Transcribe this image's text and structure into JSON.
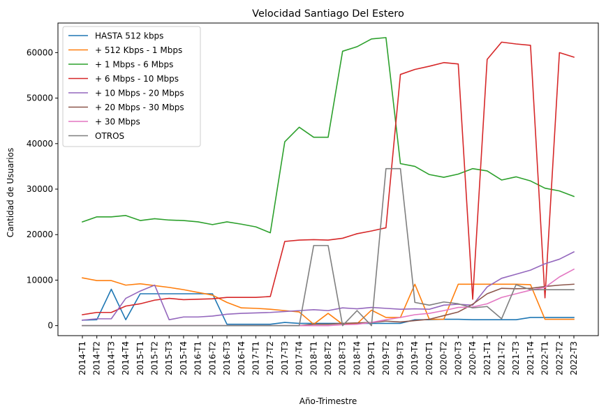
{
  "chart_data": {
    "type": "line",
    "title": "Velocidad Santiago Del Estero",
    "xlabel": "Año-Trimestre",
    "ylabel": "Cantidad de Usuarios",
    "ylim": [
      -2200,
      66500
    ],
    "yticks": [
      0,
      10000,
      20000,
      30000,
      40000,
      50000,
      60000
    ],
    "grid": false,
    "legend": "top-left",
    "categories": [
      "2014-T1",
      "2014-T2",
      "2014-T3",
      "2014-T4",
      "2015-T1",
      "2015-T2",
      "2015-T3",
      "2015-T4",
      "2016-T1",
      "2016-T2",
      "2016-T3",
      "2016-T4",
      "2017-T1",
      "2017-T2",
      "2017-T3",
      "2017-T4",
      "2018-T1",
      "2018-T2",
      "2018-T3",
      "2018-T4",
      "2019-T1",
      "2019-T2",
      "2019-T3",
      "2019-T4",
      "2020-T1",
      "2020-T2",
      "2020-T3",
      "2020-T4",
      "2021-T1",
      "2021-T2",
      "2021-T3",
      "2021-T4",
      "2022-T1",
      "2022-T2",
      "2022-T3"
    ],
    "series": [
      {
        "name": "HASTA 512 kbps",
        "color": "#1f77b4",
        "values": [
          1200,
          1300,
          8000,
          1300,
          7000,
          7000,
          7000,
          7000,
          7000,
          7000,
          300,
          300,
          300,
          300,
          700,
          500,
          500,
          500,
          500,
          500,
          500,
          500,
          500,
          1300,
          1300,
          1400,
          1400,
          1300,
          1300,
          1300,
          1300,
          1800,
          1800,
          1800,
          1800
        ]
      },
      {
        "name": "+ 512 Kbps - 1 Mbps",
        "color": "#ff7f0e",
        "values": [
          10500,
          9900,
          9900,
          8900,
          9200,
          8800,
          8400,
          7900,
          7300,
          6700,
          5100,
          3900,
          3800,
          3600,
          3300,
          3000,
          300,
          2700,
          300,
          400,
          3400,
          1800,
          1800,
          9100,
          1400,
          1400,
          9100,
          9100,
          9100,
          9100,
          9100,
          9000,
          1400,
          1400,
          1400
        ]
      },
      {
        "name": "+ 1 Mbps - 6 Mbps",
        "color": "#2ca02c",
        "values": [
          22800,
          23900,
          23900,
          24200,
          23100,
          23500,
          23200,
          23100,
          22800,
          22200,
          22800,
          22300,
          21700,
          20400,
          40400,
          43600,
          41400,
          41400,
          60300,
          61300,
          63000,
          63300,
          35600,
          35000,
          33200,
          32600,
          33300,
          34500,
          34000,
          32000,
          32700,
          31800,
          30200,
          29600,
          28400
        ]
      },
      {
        "name": "+ 6 Mbps - 10 Mbps",
        "color": "#d62728",
        "values": [
          2400,
          2900,
          2900,
          4300,
          4800,
          5600,
          6000,
          5700,
          5800,
          5900,
          6200,
          6200,
          6200,
          6400,
          18500,
          18800,
          18900,
          18800,
          19200,
          20200,
          20800,
          21500,
          55200,
          56300,
          57000,
          57800,
          57500,
          5800,
          58500,
          62300,
          61900,
          61600,
          6100,
          60000,
          59000
        ]
      },
      {
        "name": "+ 10 Mbps - 20 Mbps",
        "color": "#9467bd",
        "values": [
          1200,
          1500,
          1500,
          6000,
          7600,
          8900,
          1300,
          1900,
          1900,
          2100,
          2500,
          2700,
          2800,
          2900,
          3100,
          3300,
          3500,
          3300,
          3900,
          3700,
          4000,
          3800,
          3600,
          3700,
          3600,
          4500,
          4700,
          4500,
          8500,
          10400,
          11300,
          12200,
          13600,
          14600,
          16200
        ]
      },
      {
        "name": "+ 20 Mbps - 30 Mbps",
        "color": "#8c564b",
        "values": [
          0,
          0,
          0,
          0,
          0,
          0,
          0,
          0,
          0,
          0,
          0,
          0,
          0,
          0,
          0,
          0,
          300,
          300,
          500,
          600,
          700,
          1000,
          800,
          1100,
          1400,
          2200,
          3000,
          4700,
          7000,
          8200,
          8100,
          8200,
          8600,
          8900,
          9100
        ]
      },
      {
        "name": "+ 30 Mbps",
        "color": "#e377c2",
        "values": [
          0,
          0,
          0,
          0,
          0,
          0,
          0,
          0,
          0,
          0,
          0,
          0,
          0,
          0,
          0,
          0,
          0,
          0,
          200,
          300,
          700,
          1300,
          1800,
          2400,
          2700,
          3300,
          4000,
          4100,
          4800,
          6200,
          7000,
          7800,
          8400,
          10700,
          12400
        ]
      },
      {
        "name": "OTROS",
        "color": "#7f7f7f",
        "values": [
          0,
          0,
          0,
          0,
          0,
          0,
          0,
          0,
          0,
          0,
          0,
          0,
          0,
          0,
          0,
          0,
          17600,
          17600,
          0,
          3300,
          0,
          34500,
          34500,
          5100,
          4500,
          5200,
          4800,
          3900,
          4200,
          1500,
          9000,
          7900,
          7900,
          7900,
          7900
        ]
      }
    ]
  }
}
